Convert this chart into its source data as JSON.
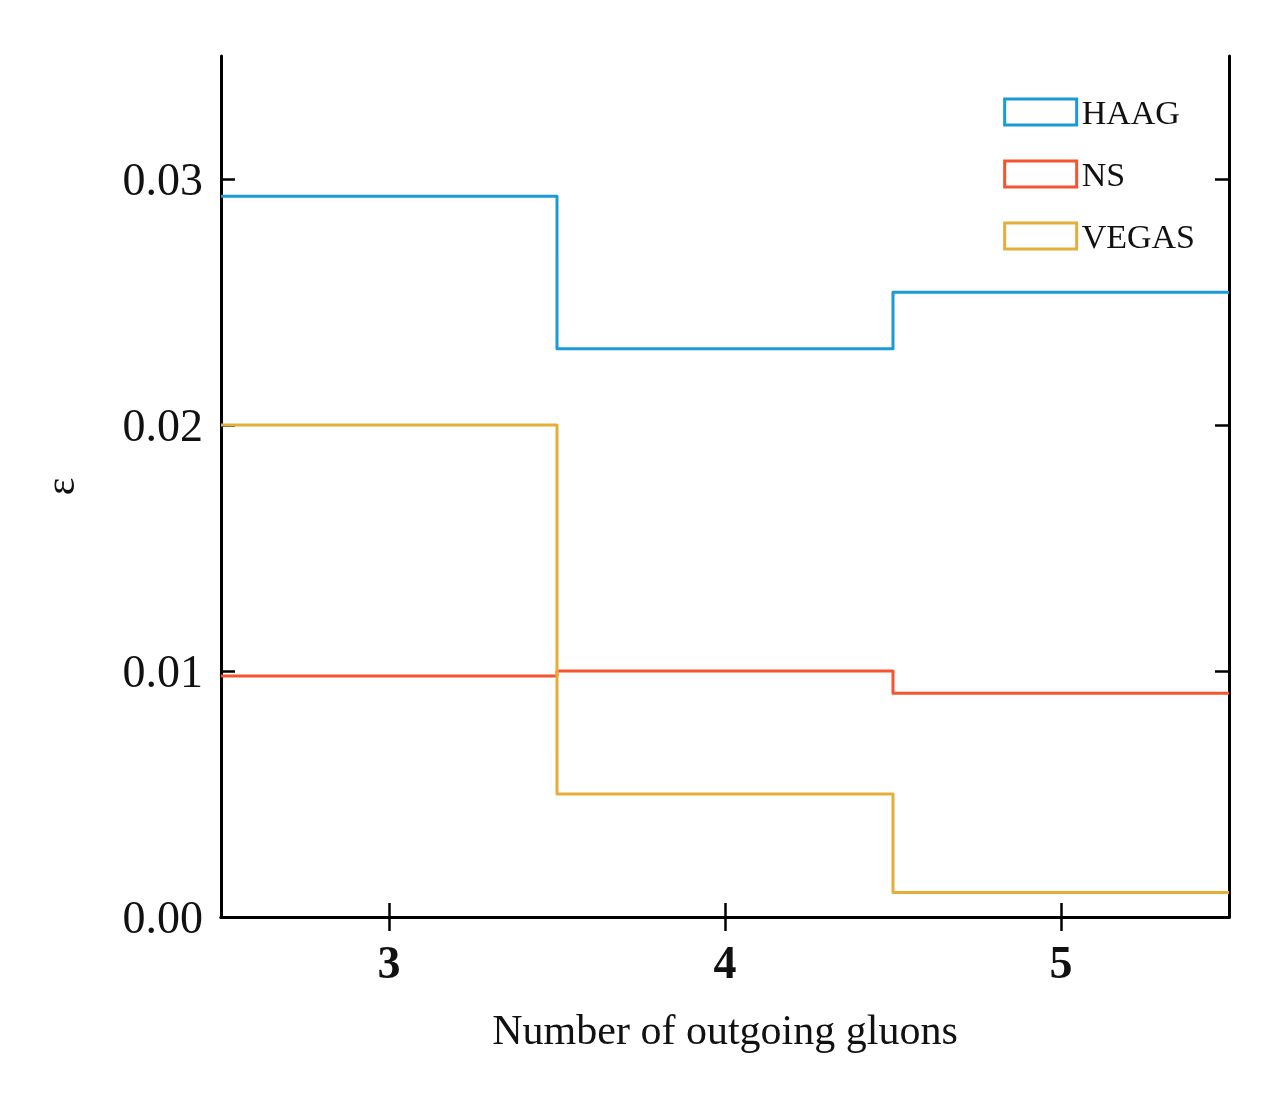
{
  "chart_data": {
    "type": "histogram",
    "xlabel": "Number of outgoing gluons",
    "ylabel": "ε",
    "bins": [
      2.5,
      3.5,
      4.5,
      5.5
    ],
    "series": [
      {
        "name": "HAAG",
        "color": "#1a9ad6",
        "values": [
          0.0293,
          0.0231,
          0.0254
        ]
      },
      {
        "name": "NS",
        "color": "#f5542e",
        "values": [
          0.0098,
          0.01,
          0.0091
        ]
      },
      {
        "name": "VEGAS",
        "color": "#e5ae38",
        "values": [
          0.02,
          0.005,
          0.001
        ]
      }
    ],
    "xlim": [
      2.5,
      5.5
    ],
    "xticks": [
      3,
      4,
      5
    ],
    "ylim": [
      0,
      0.035
    ],
    "yticks": [
      {
        "value": 0,
        "label": "0.00"
      },
      {
        "value": 0.01,
        "label": "0.01"
      },
      {
        "value": 0.02,
        "label": "0.02"
      },
      {
        "value": 0.03,
        "label": "0.03"
      }
    ],
    "legend": "top right",
    "grid": false
  }
}
